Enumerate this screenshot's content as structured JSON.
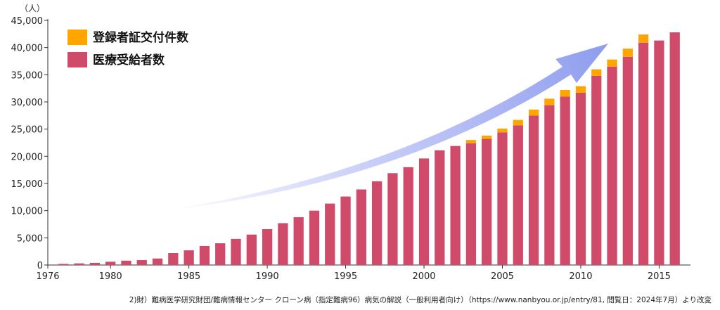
{
  "chart_data": {
    "type": "bar",
    "stacked": true,
    "ylabel": "（人）",
    "ylim": [
      0,
      45000
    ],
    "xlim": [
      1976,
      2017
    ],
    "y_ticks": [
      0,
      5000,
      10000,
      15000,
      20000,
      25000,
      30000,
      35000,
      40000,
      45000
    ],
    "y_tick_labels": [
      "0",
      "5,000",
      "10,000",
      "15,000",
      "20,000",
      "25,000",
      "30,000",
      "35,000",
      "40,000",
      "45,000"
    ],
    "x_ticks": [
      1976,
      1980,
      1985,
      1990,
      1995,
      2000,
      2005,
      2010,
      2015
    ],
    "x_tick_labels": [
      "1976",
      "1980",
      "1985",
      "1990",
      "1995",
      "2000",
      "2005",
      "2010",
      "2015"
    ],
    "legend_position": "top-left",
    "grid": false,
    "annotation": "upward trend arrow",
    "x": [
      1977,
      1978,
      1979,
      1980,
      1981,
      1982,
      1983,
      1984,
      1985,
      1986,
      1987,
      1988,
      1989,
      1990,
      1991,
      1992,
      1993,
      1994,
      1995,
      1996,
      1997,
      1998,
      1999,
      2000,
      2001,
      2002,
      2003,
      2004,
      2005,
      2006,
      2007,
      2008,
      2009,
      2010,
      2011,
      2012,
      2013,
      2014,
      2015,
      2016
    ],
    "series": [
      {
        "name": "医療受給者数",
        "color": "#D04A6A",
        "values": [
          200,
          300,
          400,
          600,
          800,
          900,
          1200,
          2200,
          2700,
          3500,
          4000,
          4800,
          5600,
          6600,
          7700,
          8800,
          10000,
          11300,
          12600,
          13900,
          15400,
          16900,
          18000,
          19600,
          21100,
          21900,
          22400,
          23200,
          24400,
          25700,
          27500,
          29400,
          31000,
          31700,
          34800,
          36500,
          38300,
          40900,
          41300,
          42800
        ]
      },
      {
        "name": "登録者証交付件数",
        "color": "#FFA500",
        "values": [
          0,
          0,
          0,
          0,
          0,
          0,
          0,
          0,
          0,
          0,
          0,
          0,
          0,
          0,
          0,
          0,
          0,
          0,
          0,
          0,
          0,
          0,
          0,
          0,
          0,
          0,
          600,
          600,
          700,
          1000,
          1100,
          1200,
          1200,
          1200,
          1200,
          1300,
          1500,
          1500,
          0,
          0
        ]
      }
    ]
  },
  "source": "2)財）難病医学研究財団/難病情報センター クローン病（指定難病96）病気の解説（一般利用者向け）（https://www.nanbyou.or.jp/entry/81, 閲覧日：2024年7月）より改変"
}
